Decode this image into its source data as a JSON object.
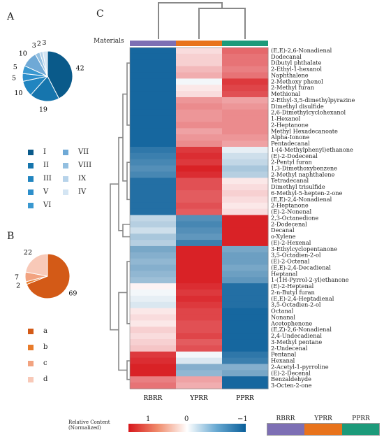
{
  "panels": {
    "a": "A",
    "b": "B",
    "c": "C"
  },
  "pie_a": {
    "legend": [
      "I",
      "II",
      "III",
      "V",
      "VI",
      "VII",
      "VIII",
      "IX",
      "IV"
    ]
  },
  "pie_b": {
    "legend": [
      "a",
      "b",
      "c",
      "d"
    ]
  },
  "colorbar": {
    "title_line1": "Relative Content",
    "title_line2": "(Normalized)",
    "min_label": "1",
    "mid_label": "0",
    "max_label": "−1"
  },
  "materials_label": "Materials",
  "materials_legend": [
    {
      "name": "RBRR",
      "color": "#7d6fb4"
    },
    {
      "name": "YPRR",
      "color": "#e8731c"
    },
    {
      "name": "PPRR",
      "color": "#1c9a7a"
    }
  ],
  "chart_data": [
    {
      "type": "pie",
      "title": "A",
      "categories": [
        "I",
        "II",
        "III",
        "V",
        "VI",
        "VII",
        "VIII",
        "IX",
        "IV"
      ],
      "values": [
        42,
        19,
        10,
        5,
        5,
        10,
        3,
        2,
        3
      ],
      "colors": [
        "#0a5a8a",
        "#1675ad",
        "#2185c0",
        "#2d8fcb",
        "#3a98d0",
        "#6fa9d6",
        "#93bfe0",
        "#b7d3ea",
        "#d4e5f3"
      ]
    },
    {
      "type": "pie",
      "title": "B",
      "categories": [
        "a",
        "b",
        "c",
        "d"
      ],
      "values": [
        69,
        2,
        7,
        22
      ],
      "colors": [
        "#d35a17",
        "#e87b2a",
        "#f2a380",
        "#f8c9b8"
      ]
    },
    {
      "type": "heatmap",
      "title": "C",
      "columns": [
        "RBRR",
        "YPRR",
        "PPRR"
      ],
      "scale": [
        1,
        -1
      ],
      "rows": [
        {
          "name": "(E,E)-2,6-Nonadienal",
          "values": [
            -0.95,
            0.15,
            0.65
          ]
        },
        {
          "name": "Dodecanal",
          "values": [
            -0.95,
            0.2,
            0.6
          ]
        },
        {
          "name": "Dibutyl phthalate",
          "values": [
            -0.95,
            0.2,
            0.6
          ]
        },
        {
          "name": "2-Ethyl-1-hexanol",
          "values": [
            -0.95,
            0.3,
            0.55
          ]
        },
        {
          "name": "Naphthalene",
          "values": [
            -0.95,
            0.35,
            0.6
          ]
        },
        {
          "name": "2-Methoxy phenol",
          "values": [
            -0.95,
            -0.05,
            0.85
          ]
        },
        {
          "name": "2-Methyl furan",
          "values": [
            -0.95,
            0.1,
            0.8
          ]
        },
        {
          "name": "Methional",
          "values": [
            -0.95,
            0.15,
            0.75
          ]
        },
        {
          "name": "2-Ethyl-3,5-dimethylpyrazine",
          "values": [
            -0.95,
            0.45,
            0.4
          ]
        },
        {
          "name": "Dimethyl disulfide",
          "values": [
            -0.95,
            0.5,
            0.45
          ]
        },
        {
          "name": "2,6-Dimethylcyclohexanol",
          "values": [
            -0.95,
            0.45,
            0.5
          ]
        },
        {
          "name": "1-Hexanol",
          "values": [
            -0.95,
            0.45,
            0.5
          ]
        },
        {
          "name": "2-Heptanone",
          "values": [
            -0.95,
            0.5,
            0.5
          ]
        },
        {
          "name": "Methyl Hexadecanoate",
          "values": [
            -0.95,
            0.4,
            0.5
          ]
        },
        {
          "name": "Alpha-Ionone",
          "values": [
            -0.95,
            0.45,
            0.45
          ]
        },
        {
          "name": "Pentadecanal",
          "values": [
            -0.95,
            0.5,
            0.4
          ]
        },
        {
          "name": "1-(4-Methylphenyl)ethanone",
          "values": [
            -0.85,
            0.85,
            -0.1
          ]
        },
        {
          "name": "(E)-2-Dodecenal",
          "values": [
            -0.8,
            0.9,
            -0.2
          ]
        },
        {
          "name": "2-Pentyl furan",
          "values": [
            -0.75,
            0.85,
            -0.25
          ]
        },
        {
          "name": "1,3-Dimethoxybenzene",
          "values": [
            -0.7,
            0.95,
            -0.35
          ]
        },
        {
          "name": "2-Methyl naphthalene",
          "values": [
            -0.75,
            0.9,
            -0.3
          ]
        },
        {
          "name": "Tetradecanal",
          "values": [
            -0.9,
            0.75,
            0.1
          ]
        },
        {
          "name": "Dimethyl trisulfide",
          "values": [
            -0.9,
            0.75,
            0.15
          ]
        },
        {
          "name": "6-Methyl-5-hepten-2-one",
          "values": [
            -0.9,
            0.7,
            0.2
          ]
        },
        {
          "name": "(E,E)-2,4-Nonadienal",
          "values": [
            -0.9,
            0.7,
            0.15
          ]
        },
        {
          "name": "2-Heptanone",
          "values": [
            -0.9,
            0.75,
            0.1
          ]
        },
        {
          "name": "(E)-2-Nonenal",
          "values": [
            -0.9,
            0.7,
            0.15
          ]
        },
        {
          "name": "2,3-Octanedione",
          "values": [
            -0.25,
            -0.7,
            0.95
          ]
        },
        {
          "name": "2-Dodecenal",
          "values": [
            -0.3,
            -0.75,
            0.95
          ]
        },
        {
          "name": "Decanal",
          "values": [
            -0.2,
            -0.7,
            0.95
          ]
        },
        {
          "name": "o-Xylene",
          "values": [
            -0.35,
            -0.65,
            0.95
          ]
        },
        {
          "name": "(E)-2-Hexenal",
          "values": [
            -0.3,
            -0.8,
            0.95
          ]
        },
        {
          "name": "3-Ethylcyclopentanone",
          "values": [
            -0.55,
            0.95,
            -0.55
          ]
        },
        {
          "name": "3,5-Octadien-2-ol",
          "values": [
            -0.5,
            0.95,
            -0.6
          ]
        },
        {
          "name": "(E)-2-Octenal",
          "values": [
            -0.45,
            0.95,
            -0.6
          ]
        },
        {
          "name": "(E,E)-2,4-Decadienal",
          "values": [
            -0.5,
            0.95,
            -0.55
          ]
        },
        {
          "name": "Heptanal",
          "values": [
            -0.45,
            0.95,
            -0.6
          ]
        },
        {
          "name": "1-(1H-Pyrrol-2-yl)ethanone",
          "values": [
            -0.4,
            0.95,
            -0.65
          ]
        },
        {
          "name": "(E)-2-Heptenal",
          "values": [
            0.05,
            0.9,
            -0.9
          ]
        },
        {
          "name": "2-n-Butyl furan",
          "values": [
            -0.05,
            0.85,
            -0.9
          ]
        },
        {
          "name": "(E,E)-2,4-Heptadienal",
          "values": [
            -0.1,
            0.9,
            -0.9
          ]
        },
        {
          "name": "3,5-Octadien-2-ol",
          "values": [
            -0.15,
            0.85,
            -0.9
          ]
        },
        {
          "name": "Octanal",
          "values": [
            0.1,
            0.8,
            -0.95
          ]
        },
        {
          "name": "Nonanal",
          "values": [
            0.15,
            0.8,
            -0.95
          ]
        },
        {
          "name": "Acetophenone",
          "values": [
            0.1,
            0.75,
            -0.95
          ]
        },
        {
          "name": "(E,Z)-2,6-Nonadienal",
          "values": [
            0.2,
            0.75,
            -0.95
          ]
        },
        {
          "name": "2,4-Undecadienal",
          "values": [
            0.15,
            0.8,
            -0.95
          ]
        },
        {
          "name": "3-Methyl pentane",
          "values": [
            0.2,
            0.7,
            -0.95
          ]
        },
        {
          "name": "2-Undecenal",
          "values": [
            0.25,
            0.75,
            -0.95
          ]
        },
        {
          "name": "Pentanal",
          "values": [
            0.85,
            -0.05,
            -0.85
          ]
        },
        {
          "name": "Hexanal",
          "values": [
            0.9,
            -0.15,
            -0.8
          ]
        },
        {
          "name": "2-Acetyl-1-pyrroline",
          "values": [
            0.95,
            -0.5,
            -0.5
          ]
        },
        {
          "name": "(E)-2-Decenal",
          "values": [
            0.95,
            -0.45,
            -0.55
          ]
        },
        {
          "name": "Benzaldehyde",
          "values": [
            0.55,
            0.4,
            -0.95
          ]
        },
        {
          "name": "3-Octen-2-one",
          "values": [
            0.6,
            0.35,
            -0.95
          ]
        }
      ]
    }
  ]
}
